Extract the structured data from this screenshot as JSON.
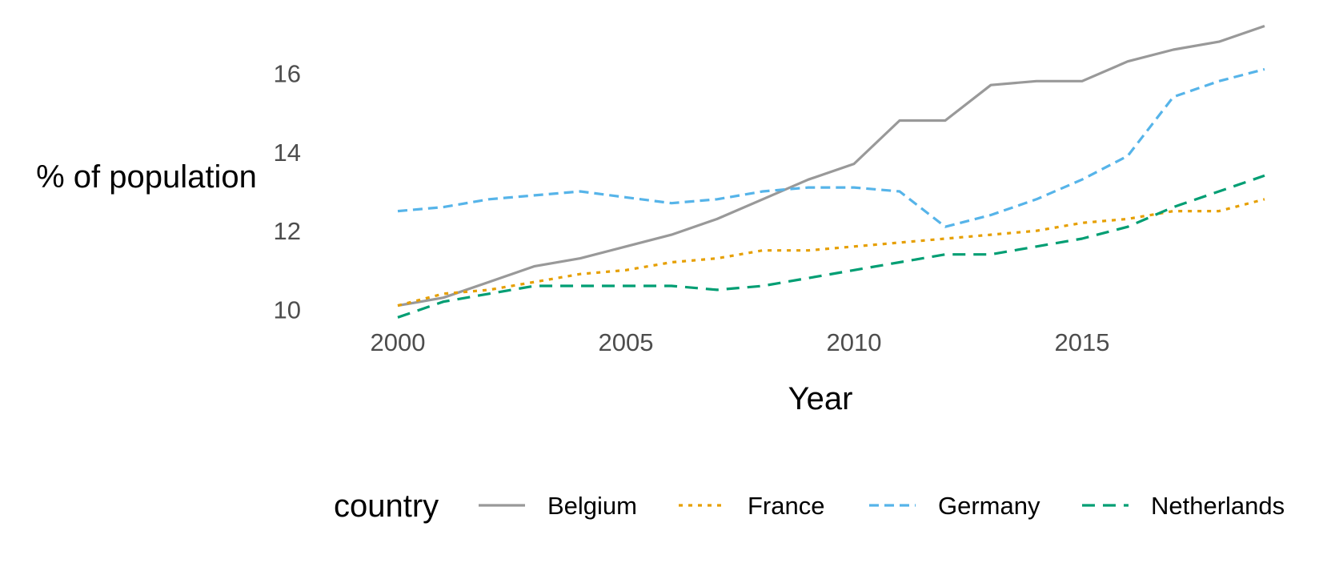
{
  "chart_data": {
    "type": "line",
    "xlabel": "Year",
    "ylabel": "% of population",
    "xlim": [
      1999,
      2019
    ],
    "ylim": [
      9.4,
      17.25
    ],
    "x_ticks": [
      2000,
      2005,
      2010,
      2015
    ],
    "y_ticks": [
      10,
      12,
      14,
      16
    ],
    "x_tick_labels": [
      "2000",
      "2005",
      "2010",
      "2015"
    ],
    "y_tick_labels": [
      "10",
      "12",
      "14",
      "16"
    ],
    "grid": false,
    "legend": {
      "title": "country",
      "position": "bottom"
    },
    "x": [
      2000,
      2001,
      2002,
      2003,
      2004,
      2005,
      2006,
      2007,
      2008,
      2009,
      2010,
      2011,
      2012,
      2013,
      2014,
      2015,
      2016,
      2017,
      2018,
      2019
    ],
    "series": [
      {
        "name": "Belgium",
        "color": "#999999",
        "dash": "solid",
        "values": [
          10.1,
          10.3,
          10.7,
          11.1,
          11.3,
          11.6,
          11.9,
          12.3,
          12.8,
          13.3,
          13.7,
          14.8,
          14.8,
          15.7,
          15.8,
          15.8,
          16.3,
          16.6,
          16.8,
          17.2
        ]
      },
      {
        "name": "France",
        "color": "#E69F00",
        "dash": "dotted",
        "values": [
          10.1,
          10.4,
          10.5,
          10.7,
          10.9,
          11.0,
          11.2,
          11.3,
          11.5,
          11.5,
          11.6,
          11.7,
          11.8,
          11.9,
          12.0,
          12.2,
          12.3,
          12.5,
          12.5,
          12.8
        ]
      },
      {
        "name": "Germany",
        "color": "#56B4E9",
        "dash": "dashed",
        "values": [
          12.5,
          12.6,
          12.8,
          12.9,
          13.0,
          12.85,
          12.7,
          12.8,
          13.0,
          13.1,
          13.1,
          13.0,
          12.1,
          12.4,
          12.8,
          13.3,
          13.9,
          15.4,
          15.8,
          16.1
        ]
      },
      {
        "name": "Netherlands",
        "color": "#009E73",
        "dash": "longdash",
        "values": [
          9.8,
          10.2,
          10.4,
          10.6,
          10.6,
          10.6,
          10.6,
          10.5,
          10.6,
          10.8,
          11.0,
          11.2,
          11.4,
          11.4,
          11.6,
          11.8,
          12.1,
          12.6,
          13.0,
          13.4
        ]
      }
    ]
  }
}
